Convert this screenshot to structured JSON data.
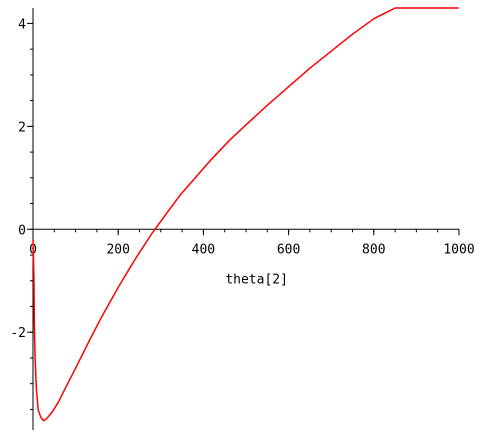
{
  "chart_data": {
    "type": "line",
    "xlabel": "theta[2]",
    "ylabel": "",
    "xlim": [
      0,
      1000
    ],
    "ylim": [
      -3.9,
      4.3
    ],
    "xticks": [
      0,
      200,
      400,
      600,
      800,
      1000
    ],
    "yticks": [
      -2,
      0,
      2,
      4
    ],
    "x_minor_step": 50,
    "y_minor_step": 0.5,
    "grid": false,
    "legend": "none",
    "line_color": "#ff0000",
    "series": [
      {
        "x": [
          0,
          2,
          3,
          5,
          8,
          12,
          18,
          25,
          32,
          45,
          60,
          80,
          100,
          130,
          160,
          200,
          240,
          280,
          320,
          345,
          380,
          420,
          460,
          500,
          550,
          600,
          650,
          700,
          750,
          800,
          850,
          900,
          950,
          1000
        ],
        "y": [
          -0.2,
          -0.9,
          -1.8,
          -2.5,
          -3.1,
          -3.5,
          -3.65,
          -3.72,
          -3.68,
          -3.55,
          -3.35,
          -3.02,
          -2.7,
          -2.2,
          -1.72,
          -1.13,
          -0.58,
          -0.07,
          0.38,
          0.66,
          0.99,
          1.37,
          1.72,
          2.03,
          2.41,
          2.77,
          3.13,
          3.46,
          3.79,
          4.09,
          4.38,
          4.66,
          4.93,
          5.18
        ]
      }
    ]
  }
}
